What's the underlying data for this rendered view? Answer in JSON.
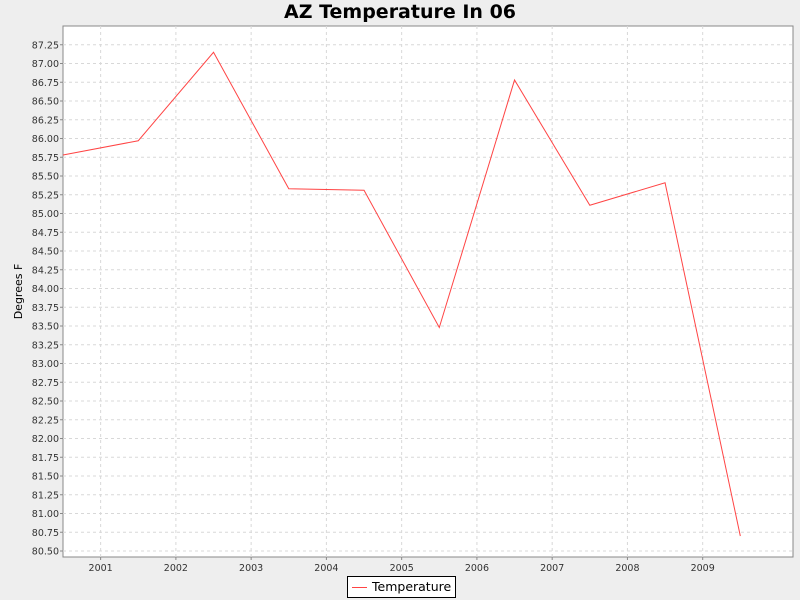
{
  "colors": {
    "background": "#eeeeee",
    "plot_background": "#ffffff",
    "gridline": "#d8d8d8",
    "series": "#ff4444"
  },
  "legend": {
    "label": "Temperature"
  },
  "chart_data": {
    "type": "line",
    "title": "AZ Temperature In 06",
    "xlabel": "",
    "ylabel": "Degrees F",
    "x": [
      2000.5,
      2001.5,
      2002.5,
      2003.5,
      2004.5,
      2005.5,
      2006.5,
      2007.5,
      2008.5,
      2009.5
    ],
    "x_ticks": [
      "2001",
      "2002",
      "2003",
      "2004",
      "2005",
      "2006",
      "2007",
      "2008",
      "2009"
    ],
    "y_ticks": [
      "80.50",
      "80.75",
      "81.00",
      "81.25",
      "81.50",
      "81.75",
      "82.00",
      "82.25",
      "82.50",
      "82.75",
      "83.00",
      "83.25",
      "83.50",
      "83.75",
      "84.00",
      "84.25",
      "84.50",
      "84.75",
      "85.00",
      "85.25",
      "85.50",
      "85.75",
      "86.00",
      "86.25",
      "86.50",
      "86.75",
      "87.00",
      "87.25"
    ],
    "xlim": [
      2000.5,
      2010.2
    ],
    "ylim": [
      80.42,
      87.5
    ],
    "series": [
      {
        "name": "Temperature",
        "color": "#ff4444",
        "values": [
          85.78,
          85.97,
          87.15,
          85.33,
          85.31,
          83.48,
          86.78,
          85.11,
          85.41,
          80.7
        ]
      }
    ],
    "grid": true,
    "legend_position": "bottom"
  }
}
